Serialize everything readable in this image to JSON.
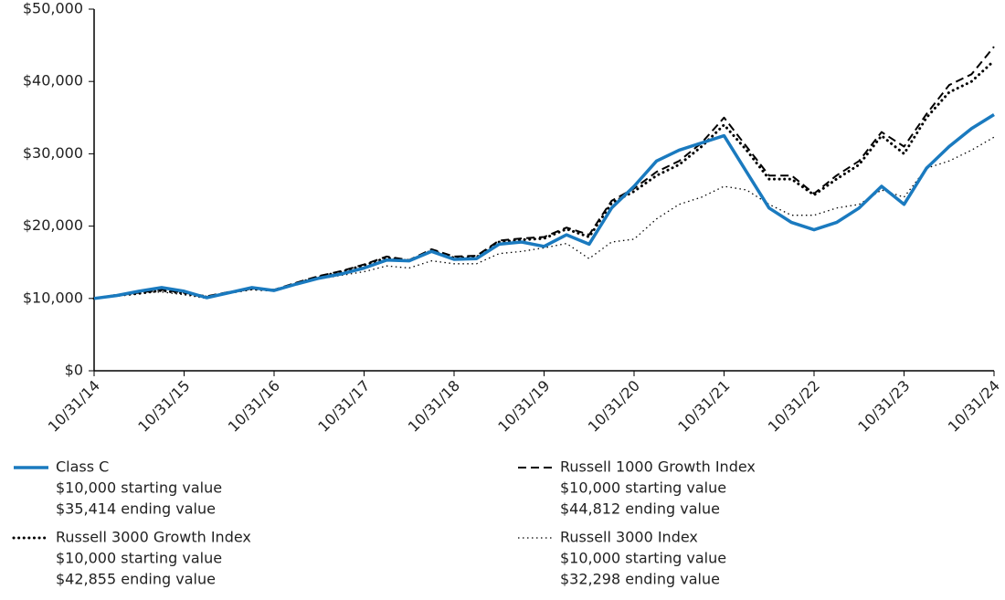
{
  "chart_data": {
    "type": "line",
    "x": [
      "10/31/14",
      "01/31/15",
      "04/30/15",
      "07/31/15",
      "10/31/15",
      "01/31/16",
      "04/30/16",
      "07/31/16",
      "10/31/16",
      "01/31/17",
      "04/30/17",
      "07/31/17",
      "10/31/17",
      "01/31/18",
      "04/30/18",
      "07/31/18",
      "10/31/18",
      "01/31/19",
      "04/30/19",
      "07/31/19",
      "10/31/19",
      "01/31/20",
      "04/30/20",
      "07/31/20",
      "10/31/20",
      "01/31/21",
      "04/30/21",
      "07/31/21",
      "10/31/21",
      "01/31/22",
      "04/30/22",
      "07/31/22",
      "10/31/22",
      "01/31/23",
      "04/30/23",
      "07/31/23",
      "10/31/23",
      "01/31/24",
      "04/30/24",
      "07/31/24",
      "10/31/24"
    ],
    "xticks": [
      "10/31/14",
      "10/31/15",
      "10/31/16",
      "10/31/17",
      "10/31/18",
      "10/31/19",
      "10/31/20",
      "10/31/21",
      "10/31/22",
      "10/31/23",
      "10/31/24"
    ],
    "ylim": [
      0,
      50000
    ],
    "yticks": [
      {
        "value": 0,
        "label": "$0"
      },
      {
        "value": 10000,
        "label": "$10,000"
      },
      {
        "value": 20000,
        "label": "$20,000"
      },
      {
        "value": 30000,
        "label": "$30,000"
      },
      {
        "value": 40000,
        "label": "$40,000"
      },
      {
        "value": 50000,
        "label": "$50,000"
      }
    ],
    "series": [
      {
        "name": "Class C",
        "color": "#1a7abf",
        "style": "solid",
        "legend_lines": [
          "$10,000 starting value",
          "$35,414 ending value"
        ],
        "values": [
          10000,
          10400,
          11000,
          11500,
          11000,
          10100,
          10800,
          11500,
          11100,
          12000,
          12800,
          13400,
          14200,
          15300,
          15200,
          16500,
          15400,
          15500,
          17500,
          17800,
          17200,
          18800,
          17500,
          22500,
          25500,
          29000,
          30500,
          31500,
          32500,
          27500,
          22500,
          20500,
          19500,
          20500,
          22500,
          25500,
          23000,
          28000,
          31000,
          33500,
          35414
        ]
      },
      {
        "name": "Russell 1000 Growth Index",
        "color": "#000000",
        "style": "dashed",
        "legend_lines": [
          "$10,000 starting value",
          "$44,812 ending value"
        ],
        "values": [
          10000,
          10500,
          10800,
          11200,
          10800,
          10300,
          10900,
          11400,
          11200,
          12200,
          13100,
          13800,
          14700,
          15800,
          15300,
          16800,
          15800,
          15900,
          18000,
          18300,
          18500,
          19800,
          18800,
          23500,
          25200,
          27500,
          29000,
          31500,
          35000,
          31000,
          27000,
          27000,
          24500,
          27000,
          29000,
          33000,
          31000,
          35500,
          39500,
          41000,
          44812
        ]
      },
      {
        "name": "Russell 3000 Growth Index",
        "color": "#000000",
        "style": "dotted-bold",
        "legend_lines": [
          "$10,000 starting value",
          "$42,855 ending value"
        ],
        "values": [
          10000,
          10400,
          10700,
          11100,
          10700,
          10200,
          10800,
          11300,
          11100,
          12100,
          13000,
          13700,
          14600,
          15600,
          15200,
          16600,
          15600,
          15700,
          17800,
          18100,
          18300,
          19600,
          18500,
          23200,
          24800,
          27000,
          28500,
          31000,
          34000,
          30500,
          26500,
          26500,
          24300,
          26500,
          28500,
          32500,
          30000,
          35000,
          38500,
          40000,
          42855
        ]
      },
      {
        "name": "Russell 3000 Index",
        "color": "#000000",
        "style": "dotted",
        "legend_lines": [
          "$10,000 starting value",
          "$32,298 ending value"
        ],
        "values": [
          10000,
          10300,
          10800,
          10900,
          10500,
          10000,
          10700,
          11300,
          11100,
          12000,
          12700,
          13200,
          13700,
          14500,
          14200,
          15200,
          14800,
          14800,
          16200,
          16500,
          17000,
          17600,
          15500,
          17800,
          18200,
          21000,
          23000,
          24000,
          25500,
          25000,
          23000,
          21500,
          21500,
          22500,
          23000,
          25000,
          24000,
          28000,
          29000,
          30500,
          32298
        ]
      }
    ]
  }
}
